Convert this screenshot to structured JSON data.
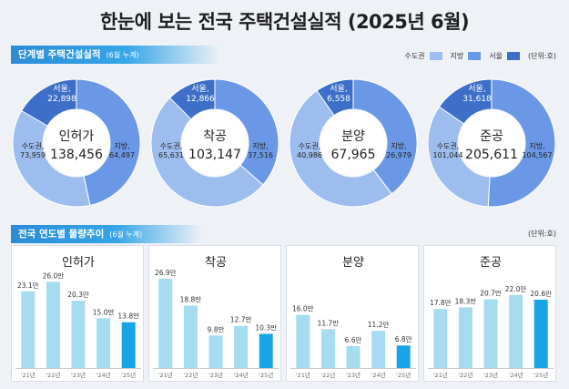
{
  "title": "한눈에 보는 전국 주택건설실적 (2025년 6월)",
  "section1": {
    "label": "단계별 주택건설실적",
    "sub": "(6월 누계)"
  },
  "legend": {
    "items": [
      {
        "label": "수도권",
        "color": "#9dbdee"
      },
      {
        "label": "지방",
        "color": "#6b98e6"
      },
      {
        "label": "서울",
        "color": "#3d6fc9"
      }
    ],
    "unit": "(단위:호)"
  },
  "section2": {
    "label": "전국 연도별 물량추이",
    "sub": "(6월 누계)",
    "unit": "(단위:호)"
  },
  "chart_data": [
    {
      "type": "pie",
      "title": "인허가",
      "total": "138,456",
      "slices": [
        {
          "name": "수도권",
          "value": 73959,
          "label": "수도권,\n73,959"
        },
        {
          "name": "지방",
          "value": 64497,
          "label": "지방,\n64,497"
        }
      ],
      "inner": {
        "name": "서울",
        "value": 22898,
        "label": "서울,\n22,898"
      }
    },
    {
      "type": "pie",
      "title": "착공",
      "total": "103,147",
      "slices": [
        {
          "name": "수도권",
          "value": 65631,
          "label": "수도권,\n65,631"
        },
        {
          "name": "지방",
          "value": 37516,
          "label": "지방,\n37,516"
        }
      ],
      "inner": {
        "name": "서울",
        "value": 12866,
        "label": "서울,\n12,866"
      }
    },
    {
      "type": "pie",
      "title": "분양",
      "total": "67,965",
      "slices": [
        {
          "name": "수도권",
          "value": 40986,
          "label": "수도권,\n40,986"
        },
        {
          "name": "지방",
          "value": 26979,
          "label": "지방,\n26,979"
        }
      ],
      "inner": {
        "name": "서울",
        "value": 6558,
        "label": "서울,\n6,558"
      }
    },
    {
      "type": "pie",
      "title": "준공",
      "total": "205,611",
      "slices": [
        {
          "name": "수도권",
          "value": 101044,
          "label": "수도권,\n101,044"
        },
        {
          "name": "지방",
          "value": 104567,
          "label": "지방,\n104,567"
        }
      ],
      "inner": {
        "name": "서울",
        "value": 31618,
        "label": "서울,\n31,618"
      }
    },
    {
      "type": "bar",
      "title": "인허가",
      "categories": [
        "'21년",
        "'22년",
        "'23년",
        "'24년",
        "'25년"
      ],
      "values": [
        23.1,
        26.0,
        20.3,
        15.0,
        13.8
      ],
      "labels": [
        "23.1만",
        "26.0만",
        "20.3만",
        "15.0만",
        "13.8만"
      ],
      "ylim": [
        0,
        28
      ]
    },
    {
      "type": "bar",
      "title": "착공",
      "categories": [
        "'21년",
        "'22년",
        "'23년",
        "'24년",
        "'25년"
      ],
      "values": [
        26.9,
        18.8,
        9.8,
        12.7,
        10.3
      ],
      "labels": [
        "26.9만",
        "18.8만",
        "9.8만",
        "12.7만",
        "10.3만"
      ],
      "ylim": [
        0,
        28
      ]
    },
    {
      "type": "bar",
      "title": "분양",
      "categories": [
        "'21년",
        "'22년",
        "'23년",
        "'24년",
        "'25년"
      ],
      "values": [
        16.0,
        11.7,
        6.6,
        11.2,
        6.8
      ],
      "labels": [
        "16.0만",
        "11.7만",
        "6.6만",
        "11.2만",
        "6.8만"
      ],
      "ylim": [
        0,
        28
      ]
    },
    {
      "type": "bar",
      "title": "준공",
      "categories": [
        "'21년",
        "'22년",
        "'23년",
        "'24년",
        "'25년"
      ],
      "values": [
        17.8,
        18.3,
        20.7,
        22.0,
        20.6
      ],
      "labels": [
        "17.8만",
        "18.3만",
        "20.7만",
        "22.0만",
        "20.6만"
      ],
      "ylim": [
        0,
        28
      ]
    }
  ]
}
